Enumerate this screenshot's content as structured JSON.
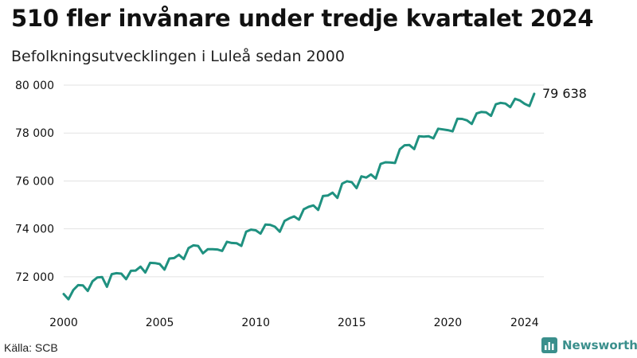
{
  "header": {
    "title": "510 fler invånare under tredje kvartalet 2024",
    "subtitle": "Befolkningsutvecklingen i Luleå sedan 2000"
  },
  "footer": {
    "source": "Källa: SCB",
    "brand": "Newsworthy",
    "brand_icon": "bar-chart-logo-icon",
    "brand_color": "#3a8f8c"
  },
  "chart_data": {
    "type": "line",
    "series_color": "#1f9180",
    "end_label": "79 638",
    "ylim": [
      71000,
      80200
    ],
    "xlim": [
      2000,
      2025
    ],
    "y_ticks": [
      72000,
      74000,
      76000,
      78000,
      80000
    ],
    "y_tick_labels": [
      "72 000",
      "74 000",
      "76 000",
      "78 000",
      "80 000"
    ],
    "x_ticks": [
      2000,
      2005,
      2010,
      2015,
      2020,
      2024
    ],
    "x_tick_labels": [
      "2000",
      "2005",
      "2010",
      "2015",
      "2020",
      "2024"
    ],
    "start_year": 2000,
    "step": 0.25,
    "values": [
      71280,
      71060,
      71450,
      71650,
      71640,
      71410,
      71810,
      71970,
      71990,
      71580,
      72110,
      72150,
      72130,
      71900,
      72250,
      72260,
      72420,
      72180,
      72580,
      72570,
      72530,
      72300,
      72760,
      72780,
      72920,
      72740,
      73200,
      73310,
      73290,
      72980,
      73150,
      73150,
      73140,
      73080,
      73460,
      73410,
      73400,
      73290,
      73880,
      73970,
      73940,
      73800,
      74180,
      74170,
      74090,
      73880,
      74330,
      74440,
      74520,
      74380,
      74820,
      74920,
      74980,
      74790,
      75370,
      75390,
      75510,
      75290,
      75890,
      75990,
      75950,
      75700,
      76190,
      76140,
      76270,
      76100,
      76710,
      76780,
      76770,
      76750,
      77320,
      77490,
      77500,
      77330,
      77870,
      77850,
      77870,
      77780,
      78180,
      78150,
      78120,
      78070,
      78600,
      78590,
      78530,
      78380,
      78820,
      78880,
      78860,
      78720,
      79200,
      79260,
      79230,
      79080,
      79430,
      79360,
      79220,
      79128,
      79638
    ]
  }
}
